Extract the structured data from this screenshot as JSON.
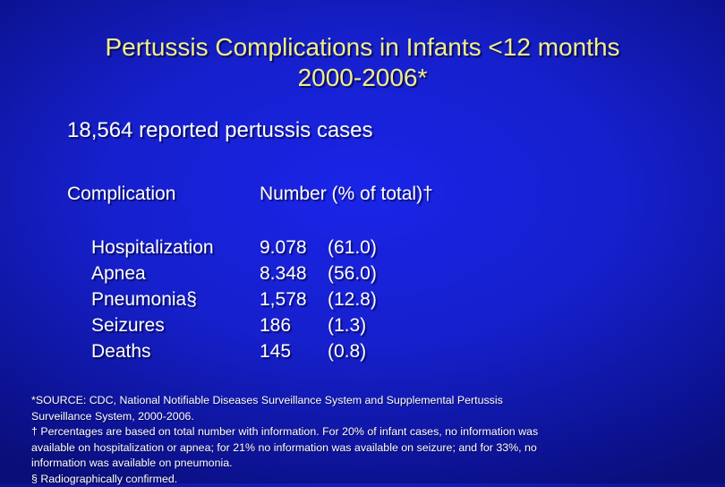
{
  "title": {
    "line1": "Pertussis Complications in Infants <12 months",
    "line2": "2000-2006*"
  },
  "subtitle": "18,564 reported pertussis cases",
  "table": {
    "headers": [
      "Complication",
      "Number (% of total)†"
    ],
    "rows": [
      {
        "name": "Hospitalization",
        "number": "9.078",
        "percent": "(61.0)"
      },
      {
        "name": "Apnea",
        "number": "8.348",
        "percent": "(56.0)"
      },
      {
        "name": "Pneumonia§",
        "number": "1,578",
        "percent": "(12.8)"
      },
      {
        "name": "Seizures",
        "number": "186",
        "percent": "(1.3)"
      },
      {
        "name": "Deaths",
        "number": "145",
        "percent": "(0.8)"
      }
    ]
  },
  "footnotes": [
    "*SOURCE: CDC, National Notifiable Diseases Surveillance System and Supplemental Pertussis",
    "Surveillance System, 2000-2006.",
    "† Percentages are based on total number with information.  For 20% of infant cases, no information was",
    "available on hospitalization or apnea; for 21% no information was available on seizure; and for 33%, no",
    "information was available on pneumonia.",
    "§ Radiographically confirmed."
  ],
  "colors": {
    "background": "#1620cc",
    "title": "#f2ee8a",
    "text": "#ffffff"
  }
}
